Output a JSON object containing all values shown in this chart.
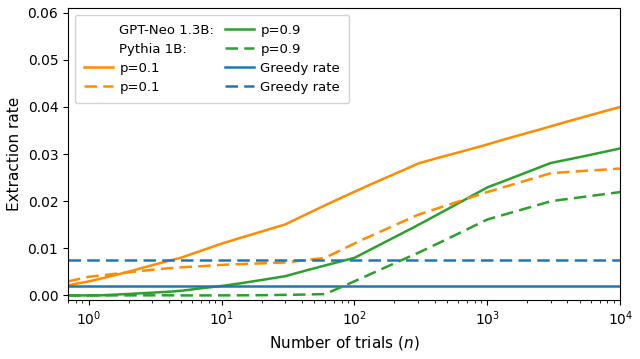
{
  "title": "",
  "xlabel": "Number of trials $(n)$",
  "ylabel": "Extraction rate",
  "xlim": [
    0.7,
    10000
  ],
  "ylim": [
    -0.001,
    0.061
  ],
  "yticks": [
    0.0,
    0.01,
    0.02,
    0.03,
    0.04,
    0.05,
    0.06
  ],
  "colors": {
    "orange": "#FF8C00",
    "green": "#2ca02c",
    "blue": "#1f77b4"
  },
  "gpt_neo_greedy": 0.002,
  "pythia_greedy": 0.0075,
  "gpt_p01_anchors": [
    [
      0.7,
      0.0022
    ],
    [
      1,
      0.003
    ],
    [
      2,
      0.005
    ],
    [
      5,
      0.008
    ],
    [
      10,
      0.011
    ],
    [
      30,
      0.015
    ],
    [
      100,
      0.022
    ],
    [
      300,
      0.028
    ],
    [
      1000,
      0.032
    ],
    [
      3000,
      0.036
    ],
    [
      10000,
      0.04
    ]
  ],
  "gpt_p09_anchors": [
    [
      0.7,
      0.0
    ],
    [
      1,
      0.0
    ],
    [
      2,
      0.0003
    ],
    [
      5,
      0.001
    ],
    [
      10,
      0.002
    ],
    [
      30,
      0.004
    ],
    [
      100,
      0.008
    ],
    [
      300,
      0.015
    ],
    [
      1000,
      0.023
    ],
    [
      3000,
      0.028
    ],
    [
      10000,
      0.031
    ]
  ],
  "pythia_p01_anchors": [
    [
      0.7,
      0.003
    ],
    [
      1,
      0.004
    ],
    [
      2,
      0.005
    ],
    [
      5,
      0.006
    ],
    [
      10,
      0.0065
    ],
    [
      30,
      0.007
    ],
    [
      60,
      0.008
    ],
    [
      100,
      0.011
    ],
    [
      300,
      0.017
    ],
    [
      1000,
      0.022
    ],
    [
      3000,
      0.026
    ],
    [
      10000,
      0.027
    ]
  ],
  "pythia_p09_anchors": [
    [
      0.7,
      0.0
    ],
    [
      1,
      0.0
    ],
    [
      2,
      0.0
    ],
    [
      5,
      0.0
    ],
    [
      10,
      0.0
    ],
    [
      30,
      0.0001
    ],
    [
      60,
      0.0003
    ],
    [
      100,
      0.003
    ],
    [
      300,
      0.009
    ],
    [
      1000,
      0.016
    ],
    [
      3000,
      0.02
    ],
    [
      10000,
      0.022
    ]
  ]
}
